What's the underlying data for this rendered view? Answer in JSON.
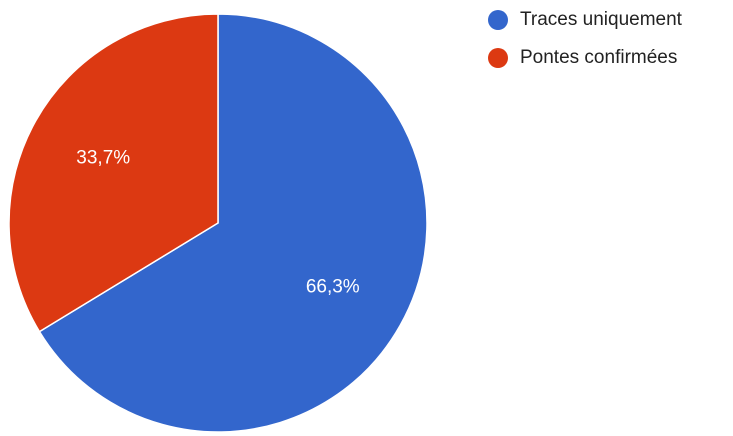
{
  "chart_data": {
    "type": "pie",
    "title": "",
    "legend_position": "right",
    "series": [
      {
        "name": "",
        "slices": [
          {
            "label": "Traces uniquement",
            "value": 66.3,
            "display": "66,3%",
            "color": "#3366cc"
          },
          {
            "label": "Pontes confirmées",
            "value": 33.7,
            "display": "33,7%",
            "color": "#dc3912"
          }
        ]
      }
    ]
  }
}
